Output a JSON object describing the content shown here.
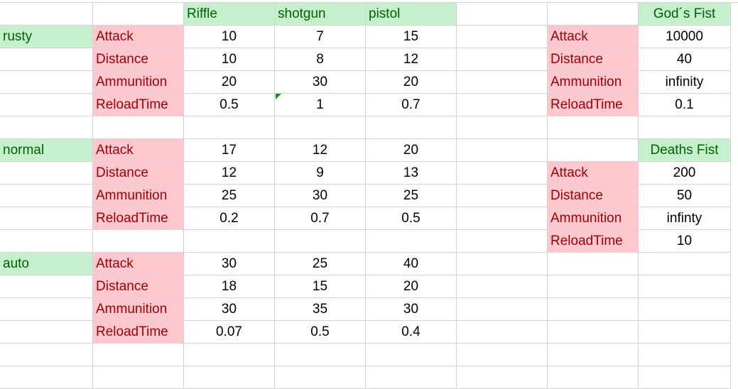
{
  "sheet": {
    "rows": [
      [
        "",
        "",
        "Riffle",
        "shotgun",
        "pistol",
        "",
        "",
        "God´s Fist"
      ],
      [
        "rusty",
        "Attack",
        "10",
        "7",
        "15",
        "",
        "Attack",
        "10000"
      ],
      [
        "",
        "Distance",
        "10",
        "8",
        "12",
        "",
        "Distance",
        "40"
      ],
      [
        "",
        "Ammunition",
        "20",
        "30",
        "20",
        "",
        "Ammunition",
        "infinity"
      ],
      [
        "",
        "ReloadTime",
        "0.5",
        "1",
        "0.7",
        "",
        "ReloadTime",
        "0.1"
      ],
      [
        "",
        "",
        "",
        "",
        "",
        "",
        "",
        ""
      ],
      [
        "normal",
        "Attack",
        "17",
        "12",
        "20",
        "",
        "",
        "Deaths Fist"
      ],
      [
        "",
        "Distance",
        "12",
        "9",
        "13",
        "",
        "Attack",
        "200"
      ],
      [
        "",
        "Ammunition",
        "25",
        "30",
        "25",
        "",
        "Distance",
        "50"
      ],
      [
        "",
        "ReloadTime",
        "0.2",
        "0.7",
        "0.5",
        "",
        "Ammunition",
        "infinty"
      ],
      [
        "",
        "",
        "",
        "",
        "",
        "",
        "ReloadTime",
        "10"
      ],
      [
        "auto",
        "Attack",
        "30",
        "25",
        "40",
        "",
        "",
        ""
      ],
      [
        "",
        "Distance",
        "18",
        "15",
        "20",
        "",
        "",
        ""
      ],
      [
        "",
        "Ammunition",
        "30",
        "35",
        "30",
        "",
        "",
        ""
      ],
      [
        "",
        "ReloadTime",
        "0.07",
        "0.5",
        "0.4",
        "",
        "",
        ""
      ],
      [
        "",
        "",
        "",
        "",
        "",
        "",
        "",
        ""
      ],
      [
        "",
        "",
        "",
        "",
        "",
        "",
        "",
        ""
      ]
    ],
    "styles": [
      [
        "",
        "",
        "g",
        "g",
        "g",
        "",
        "",
        "g"
      ],
      [
        "g",
        "r",
        "",
        "",
        "",
        "",
        "r",
        ""
      ],
      [
        "",
        "r",
        "",
        "",
        "",
        "",
        "r",
        ""
      ],
      [
        "",
        "r",
        "",
        "",
        "",
        "",
        "r",
        ""
      ],
      [
        "",
        "r",
        "",
        "",
        "",
        "",
        "r",
        ""
      ],
      [
        "",
        "",
        "",
        "",
        "",
        "",
        "",
        ""
      ],
      [
        "g",
        "r",
        "",
        "",
        "",
        "",
        "",
        "g"
      ],
      [
        "",
        "r",
        "",
        "",
        "",
        "",
        "r",
        ""
      ],
      [
        "",
        "r",
        "",
        "",
        "",
        "",
        "r",
        ""
      ],
      [
        "",
        "r",
        "",
        "",
        "",
        "",
        "r",
        ""
      ],
      [
        "",
        "",
        "",
        "",
        "",
        "",
        "r",
        ""
      ],
      [
        "g",
        "r",
        "",
        "",
        "",
        "",
        "",
        ""
      ],
      [
        "",
        "r",
        "",
        "",
        "",
        "",
        "",
        ""
      ],
      [
        "",
        "r",
        "",
        "",
        "",
        "",
        "",
        ""
      ],
      [
        "",
        "r",
        "",
        "",
        "",
        "",
        "",
        ""
      ],
      [
        "",
        "",
        "",
        "",
        "",
        "",
        "",
        ""
      ],
      [
        "",
        "",
        "",
        "",
        "",
        "",
        "",
        ""
      ]
    ],
    "colors": {
      "good_fill": "#c6efce",
      "good_text": "#006100",
      "bad_fill": "#ffc7ce",
      "bad_text": "#9c0006",
      "gridline": "#d4d4d4"
    }
  }
}
